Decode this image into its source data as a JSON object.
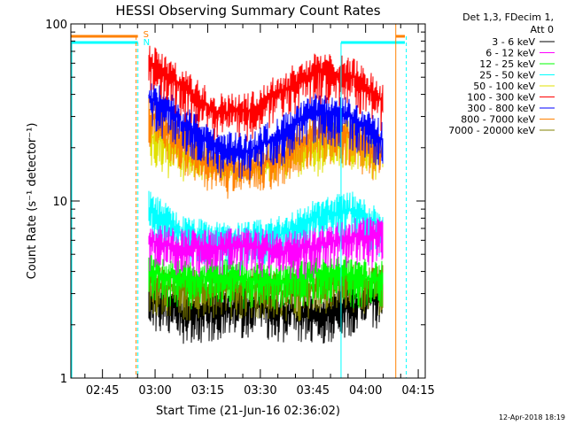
{
  "chart_data": {
    "type": "line",
    "title": "HESSI Observing Summary Count Rates",
    "xlabel": "Start Time (21-Jun-16 02:36:02)",
    "ylabel": "Count Rate (s⁻¹ detector⁻¹)",
    "yscale": "log",
    "ylim": [
      1,
      100
    ],
    "xlim_minutes_after_start": [
      0,
      101
    ],
    "x_ticks": [
      "02:45",
      "03:00",
      "03:15",
      "03:30",
      "03:45",
      "04:00",
      "04:15"
    ],
    "y_ticks": [
      "1",
      "10",
      "100"
    ],
    "legend_header": [
      "Det 1,3, FDecim 1,",
      "Att 0"
    ],
    "legend_placement": "right of plot",
    "timestamp": "12-Apr-2018 18:19",
    "flags": [
      {
        "label": "S",
        "color": "#ff8000"
      },
      {
        "label": "N",
        "color": "#00ffff"
      }
    ],
    "series": [
      {
        "name": "3 - 6 keV",
        "color": "#000000",
        "floor": 1.2,
        "level": [
          2.8,
          2.4,
          2.4,
          2.6,
          2.4,
          2.3,
          2.6,
          2.8
        ]
      },
      {
        "name": "6 - 12 keV",
        "color": "#ff00ff",
        "floor": 4.0,
        "level": [
          6.0,
          5.5,
          5.4,
          5.6,
          5.2,
          5.6,
          6.2,
          6.5
        ]
      },
      {
        "name": "12 - 25 keV",
        "color": "#00ff00",
        "floor": 2.5,
        "level": [
          4.0,
          3.6,
          3.8,
          3.6,
          3.5,
          4.0,
          3.8,
          3.6
        ]
      },
      {
        "name": "25 - 50 keV",
        "color": "#00ffff",
        "floor": 4.0,
        "level": [
          9.0,
          6.5,
          6.0,
          6.0,
          6.5,
          8.0,
          9.0,
          7.0
        ]
      },
      {
        "name": "50 - 100 keV",
        "color": "#e0e000",
        "floor": 15,
        "level": [
          24,
          18,
          14,
          13,
          16,
          21,
          23,
          18
        ]
      },
      {
        "name": "100 - 300 keV",
        "color": "#ff0000",
        "floor": 25,
        "level": [
          62,
          44,
          32,
          32,
          42,
          54,
          52,
          36
        ]
      },
      {
        "name": "300 - 800 keV",
        "color": "#0000ff",
        "floor": 15,
        "level": [
          39,
          28,
          20,
          19,
          24,
          32,
          30,
          22
        ]
      },
      {
        "name": "800 - 7000 keV",
        "color": "#ff8000",
        "floor": 12,
        "level": [
          31,
          22,
          16,
          15,
          18,
          25,
          24,
          18
        ]
      },
      {
        "name": "7000 - 20000 keV",
        "color": "#808000",
        "floor": 1.5,
        "level": [
          3.5,
          3.2,
          3.2,
          3.3,
          3.1,
          3.3,
          3.6,
          3.4
        ]
      }
    ],
    "data_time_range_minutes": [
      22,
      89
    ],
    "grid": false
  }
}
